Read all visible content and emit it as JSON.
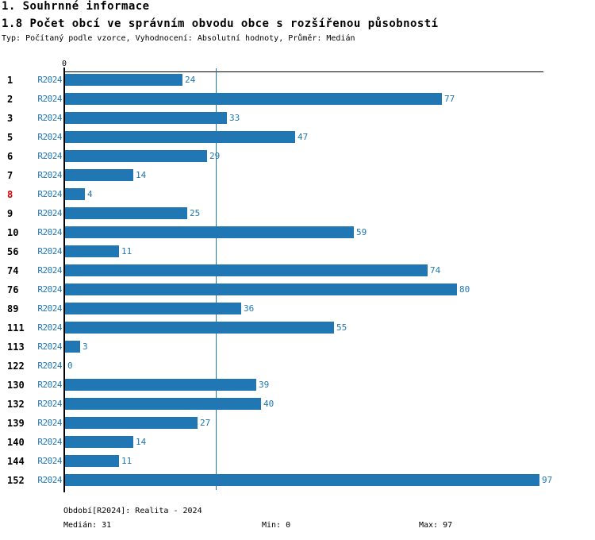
{
  "header": {
    "title_line1": "1. Souhrnné informace",
    "title_line2": "1.8 Počet obcí ve správním obvodu obce s rozšířenou působností",
    "subtitle": "Typ: Počítaný podle vzorce, Vyhodnocení: Absolutní hodnoty, Průměr: Medián"
  },
  "chart_data": {
    "type": "bar",
    "orientation": "horizontal",
    "title": "1.8 Počet obcí ve správním obvodu obce s rozšířenou působností",
    "categories": [
      "1",
      "2",
      "3",
      "5",
      "6",
      "7",
      "8",
      "9",
      "10",
      "56",
      "74",
      "76",
      "89",
      "111",
      "113",
      "122",
      "130",
      "132",
      "139",
      "140",
      "144",
      "152"
    ],
    "series": [
      {
        "name": "R2024",
        "values": [
          24,
          77,
          33,
          47,
          29,
          14,
          4,
          25,
          59,
          11,
          74,
          80,
          36,
          55,
          3,
          0,
          39,
          40,
          27,
          14,
          11,
          97
        ]
      }
    ],
    "value_labels_shown": true,
    "highlighted_category": "8",
    "x_axis": {
      "origin_label": "0",
      "min": 0,
      "max": 98,
      "gridlines": false
    },
    "median_line_value": 31,
    "legend_position": "none",
    "stats": {
      "median": 31,
      "min": 0,
      "max": 97
    }
  },
  "footer": {
    "period_label": "Období[R2024]: Realita - 2024",
    "median_label": "Medián: 31",
    "min_label": "Min: 0",
    "max_label": "Max: 97"
  },
  "colors": {
    "bar": "#2077b4",
    "blue_text": "#2077b4",
    "median_line": "#2077b4",
    "highlight": "#d40000",
    "axis": "#000000"
  }
}
